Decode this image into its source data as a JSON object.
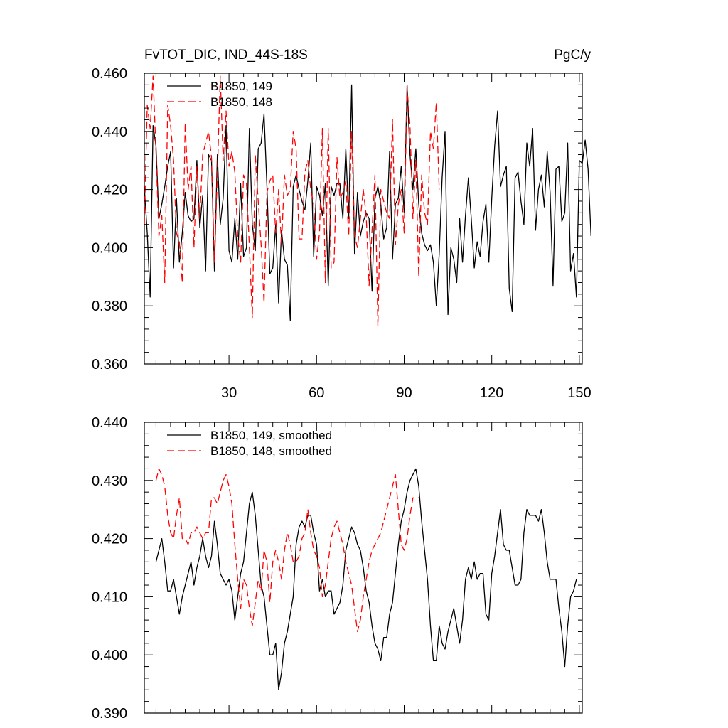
{
  "chart_data": [
    {
      "type": "line",
      "title": "FvTOT_DIC, IND_44S-18S",
      "units": "PgC/y",
      "xlim": [
        1,
        151
      ],
      "ylim": [
        0.36,
        0.46
      ],
      "yticks": [
        "0.360",
        "0.380",
        "0.400",
        "0.420",
        "0.440",
        "0.460"
      ],
      "xticks": [
        "30",
        "60",
        "90",
        "120",
        "150"
      ],
      "grid": false,
      "legend_position": "top-left",
      "series": [
        {
          "name": "B1850, 149",
          "color": "#000000",
          "dash": "solid",
          "x_start": 1,
          "values": [
            0.421,
            0.405,
            0.383,
            0.442,
            0.435,
            0.41,
            0.415,
            0.421,
            0.428,
            0.433,
            0.393,
            0.417,
            0.395,
            0.405,
            0.419,
            0.411,
            0.409,
            0.41,
            0.43,
            0.407,
            0.418,
            0.392,
            0.432,
            0.43,
            0.392,
            0.432,
            0.408,
            0.417,
            0.442,
            0.399,
            0.395,
            0.41,
            0.396,
            0.422,
            0.397,
            0.4,
            0.441,
            0.408,
            0.399,
            0.434,
            0.436,
            0.446,
            0.421,
            0.391,
            0.393,
            0.408,
            0.381,
            0.406,
            0.396,
            0.394,
            0.375,
            0.421,
            0.425,
            0.42,
            0.416,
            0.413,
            0.423,
            0.436,
            0.397,
            0.421,
            0.418,
            0.411,
            0.422,
            0.387,
            0.421,
            0.418,
            0.422,
            0.422,
            0.41,
            0.434,
            0.41,
            0.456,
            0.398,
            0.419,
            0.404,
            0.409,
            0.412,
            0.41,
            0.385,
            0.417,
            0.421,
            0.415,
            0.403,
            0.407,
            0.433,
            0.396,
            0.415,
            0.417,
            0.428,
            0.412,
            0.456,
            0.432,
            0.42,
            0.434,
            0.415,
            0.405,
            0.401,
            0.399,
            0.401,
            0.395,
            0.38,
            0.398,
            0.424,
            0.44,
            0.377,
            0.4,
            0.396,
            0.388,
            0.41,
            0.395,
            0.411,
            0.424,
            0.41,
            0.393,
            0.402,
            0.397,
            0.409,
            0.415,
            0.395,
            0.417,
            0.435,
            0.447,
            0.421,
            0.425,
            0.428,
            0.386,
            0.378,
            0.424,
            0.426,
            0.416,
            0.408,
            0.436,
            0.428,
            0.441,
            0.406,
            0.42,
            0.425,
            0.414,
            0.433,
            0.419,
            0.387,
            0.427,
            0.428,
            0.409,
            0.412,
            0.436,
            0.392,
            0.398,
            0.383,
            0.43,
            0.429,
            0.437,
            0.427,
            0.404
          ]
        },
        {
          "name": "B1850, 148",
          "color": "#ff0000",
          "dash": "dashed",
          "x_start": 1,
          "values": [
            0.408,
            0.449,
            0.441,
            0.459,
            0.433,
            0.404,
            0.411,
            0.388,
            0.449,
            0.442,
            0.43,
            0.405,
            0.402,
            0.388,
            0.443,
            0.42,
            0.428,
            0.4,
            0.428,
            0.41,
            0.432,
            0.436,
            0.44,
            0.431,
            0.395,
            0.425,
            0.459,
            0.43,
            0.447,
            0.428,
            0.433,
            0.426,
            0.404,
            0.395,
            0.425,
            0.422,
            0.4,
            0.376,
            0.432,
            0.416,
            0.401,
            0.381,
            0.419,
            0.423,
            0.425,
            0.405,
            0.42,
            0.401,
            0.425,
            0.418,
            0.42,
            0.44,
            0.434,
            0.403,
            0.403,
            0.426,
            0.43,
            0.42,
            0.415,
            0.396,
            0.405,
            0.441,
            0.388,
            0.441,
            0.393,
            0.395,
            0.431,
            0.417,
            0.419,
            0.423,
            0.404,
            0.44,
            0.404,
            0.4,
            0.41,
            0.42,
            0.411,
            0.387,
            0.406,
            0.425,
            0.373,
            0.42,
            0.416,
            0.412,
            0.41,
            0.444,
            0.401,
            0.415,
            0.42,
            0.405,
            0.455,
            0.442,
            0.41,
            0.43,
            0.39,
            0.425,
            0.412,
            0.408,
            0.44,
            0.434,
            0.45,
            0.42
          ]
        }
      ]
    },
    {
      "type": "line",
      "title": "",
      "xlim": [
        1,
        151
      ],
      "ylim": [
        0.39,
        0.44
      ],
      "yticks": [
        "0.390",
        "0.400",
        "0.410",
        "0.420",
        "0.430",
        "0.440"
      ],
      "grid": false,
      "legend_position": "top-left",
      "series": [
        {
          "name": "B1850, 149, smoothed",
          "color": "#000000",
          "dash": "solid",
          "x_start": 5,
          "values": [
            0.416,
            0.418,
            0.42,
            0.416,
            0.411,
            0.411,
            0.413,
            0.41,
            0.407,
            0.41,
            0.412,
            0.414,
            0.416,
            0.412,
            0.415,
            0.417,
            0.42,
            0.417,
            0.415,
            0.417,
            0.423,
            0.419,
            0.414,
            0.413,
            0.412,
            0.413,
            0.411,
            0.406,
            0.41,
            0.414,
            0.416,
            0.421,
            0.426,
            0.428,
            0.424,
            0.418,
            0.412,
            0.41,
            0.405,
            0.4,
            0.4,
            0.402,
            0.394,
            0.397,
            0.402,
            0.404,
            0.407,
            0.41,
            0.419,
            0.422,
            0.423,
            0.422,
            0.424,
            0.424,
            0.421,
            0.419,
            0.411,
            0.413,
            0.41,
            0.411,
            0.411,
            0.407,
            0.408,
            0.409,
            0.412,
            0.418,
            0.42,
            0.422,
            0.421,
            0.419,
            0.418,
            0.415,
            0.411,
            0.409,
            0.405,
            0.402,
            0.401,
            0.399,
            0.403,
            0.403,
            0.407,
            0.409,
            0.414,
            0.419,
            0.423,
            0.425,
            0.428,
            0.43,
            0.431,
            0.432,
            0.429,
            0.423,
            0.418,
            0.413,
            0.405,
            0.399,
            0.399,
            0.405,
            0.402,
            0.401,
            0.404,
            0.406,
            0.408,
            0.405,
            0.402,
            0.406,
            0.413,
            0.415,
            0.413,
            0.416,
            0.413,
            0.414,
            0.414,
            0.407,
            0.406,
            0.414,
            0.417,
            0.421,
            0.425,
            0.419,
            0.418,
            0.418,
            0.415,
            0.412,
            0.412,
            0.413,
            0.421,
            0.425,
            0.424,
            0.424,
            0.424,
            0.423,
            0.425,
            0.421,
            0.416,
            0.413,
            0.413,
            0.413,
            0.408,
            0.404,
            0.398,
            0.405,
            0.41,
            0.411,
            0.413
          ]
        },
        {
          "name": "B1850, 148, smoothed",
          "color": "#ff0000",
          "dash": "dashed",
          "x_start": 5,
          "values": [
            0.43,
            0.432,
            0.431,
            0.429,
            0.424,
            0.421,
            0.42,
            0.424,
            0.427,
            0.42,
            0.42,
            0.419,
            0.421,
            0.421,
            0.422,
            0.421,
            0.42,
            0.421,
            0.421,
            0.427,
            0.427,
            0.426,
            0.428,
            0.43,
            0.431,
            0.429,
            0.426,
            0.419,
            0.413,
            0.408,
            0.413,
            0.412,
            0.408,
            0.405,
            0.409,
            0.413,
            0.411,
            0.418,
            0.416,
            0.409,
            0.416,
            0.418,
            0.416,
            0.413,
            0.418,
            0.421,
            0.419,
            0.416,
            0.416,
            0.417,
            0.42,
            0.421,
            0.425,
            0.421,
            0.418,
            0.417,
            0.415,
            0.41,
            0.412,
            0.416,
            0.42,
            0.422,
            0.423,
            0.421,
            0.419,
            0.416,
            0.414,
            0.412,
            0.408,
            0.404,
            0.406,
            0.41,
            0.413,
            0.416,
            0.418,
            0.419,
            0.42,
            0.421,
            0.423,
            0.425,
            0.427,
            0.429,
            0.431,
            0.425,
            0.419,
            0.418,
            0.42,
            0.424,
            0.427,
            0.427,
            0.427
          ]
        }
      ]
    }
  ]
}
